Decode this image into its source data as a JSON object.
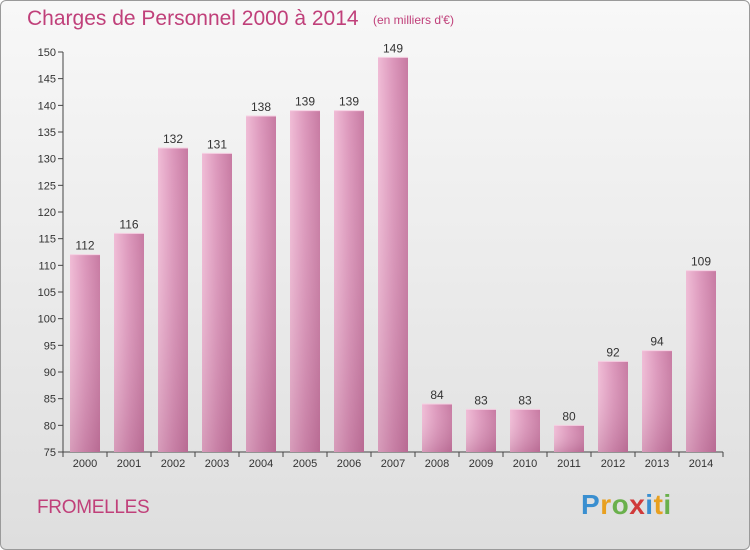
{
  "title": "Charges de Personnel 2000 à 2014",
  "unit": "(en milliers d'€)",
  "commune": "FROMELLES",
  "logo": {
    "text": "Proxiti",
    "colors": [
      "#3a8fd0",
      "#e8a020",
      "#6ab04c",
      "#d03a3a",
      "#3a8fd0",
      "#e8a020",
      "#6ab04c"
    ]
  },
  "colors": {
    "bar": "#c9779f",
    "bar_light": "#e8a9c8",
    "accent": "#c0407a"
  },
  "chart_data": {
    "type": "bar",
    "categories": [
      "2000",
      "2001",
      "2002",
      "2003",
      "2004",
      "2005",
      "2006",
      "2007",
      "2008",
      "2009",
      "2010",
      "2011",
      "2012",
      "2013",
      "2014"
    ],
    "values": [
      112,
      116,
      132,
      131,
      138,
      139,
      139,
      149,
      84,
      83,
      83,
      80,
      92,
      94,
      109
    ],
    "ylim": [
      75,
      150
    ],
    "yticks": [
      75,
      80,
      85,
      90,
      95,
      100,
      105,
      110,
      115,
      120,
      125,
      130,
      135,
      140,
      145,
      150
    ],
    "grid": false,
    "legend": "none"
  }
}
